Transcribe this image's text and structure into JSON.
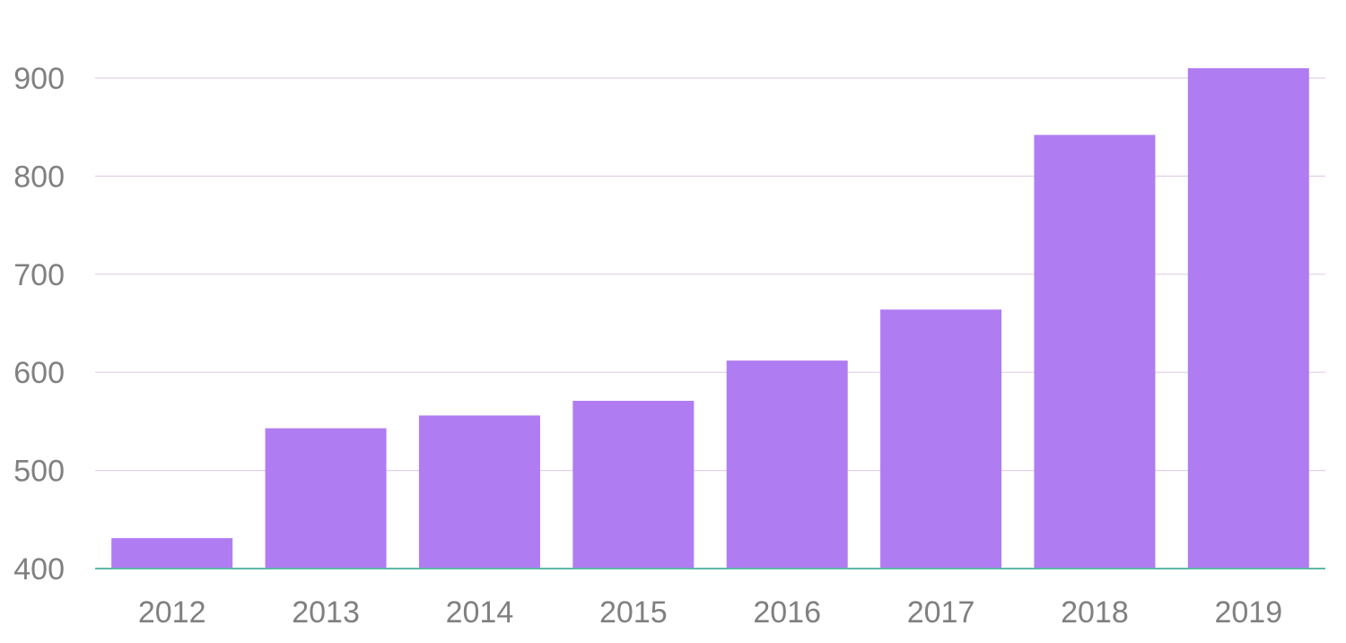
{
  "chart_data": {
    "type": "bar",
    "title": "",
    "xlabel": "",
    "ylabel": "",
    "categories": [
      "2012",
      "2013",
      "2014",
      "2015",
      "2016",
      "2017",
      "2018",
      "2019"
    ],
    "values": [
      431,
      543,
      556,
      571,
      612,
      664,
      842,
      910
    ],
    "ylim": [
      400,
      900
    ],
    "yticks": [
      "400",
      "500",
      "600",
      "700",
      "800",
      "900"
    ],
    "grid": true,
    "legend": "none",
    "colors": {
      "bar": "#B07CF2",
      "grid": "#E3CFEA",
      "axis": "#5FB8A8",
      "tick_text": "#808080"
    }
  }
}
